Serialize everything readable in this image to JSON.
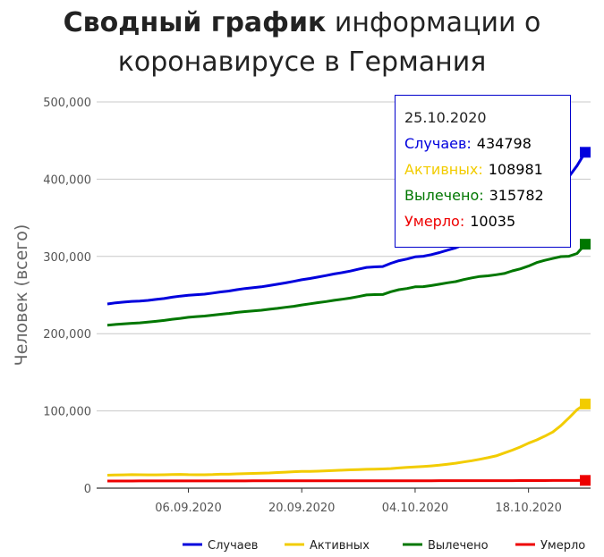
{
  "title": {
    "bold": "Сводный график",
    "rest": "информации о коронавирусе в Германия"
  },
  "tooltip": {
    "date": "25.10.2020",
    "rows": [
      {
        "label": "Случаев:",
        "value": "434798",
        "color": "#0000dd"
      },
      {
        "label": "Активных:",
        "value": "108981",
        "color": "#f2cc00"
      },
      {
        "label": "Вылечено:",
        "value": "315782",
        "color": "#007700"
      },
      {
        "label": "Умерло:",
        "value": "10035",
        "color": "#ee0000"
      }
    ]
  },
  "chart_data": {
    "type": "line",
    "ylabel": "Человек (всего)",
    "xlabel": "",
    "ylim": [
      0,
      500000
    ],
    "yticks": [
      0,
      100000,
      200000,
      300000,
      400000,
      500000
    ],
    "ytick_labels": [
      "0",
      "100,000",
      "200,000",
      "300,000",
      "400,000",
      "500,000"
    ],
    "xtick_labels": [
      "06.09.2020",
      "20.09.2020",
      "04.10.2020",
      "18.10.2020"
    ],
    "xtick_index": [
      10,
      24,
      38,
      52
    ],
    "x": [
      "27.08.2020",
      "28.08.2020",
      "29.08.2020",
      "30.08.2020",
      "31.08.2020",
      "01.09.2020",
      "02.09.2020",
      "03.09.2020",
      "04.09.2020",
      "05.09.2020",
      "06.09.2020",
      "07.09.2020",
      "08.09.2020",
      "09.09.2020",
      "10.09.2020",
      "11.09.2020",
      "12.09.2020",
      "13.09.2020",
      "14.09.2020",
      "15.09.2020",
      "16.09.2020",
      "17.09.2020",
      "18.09.2020",
      "19.09.2020",
      "20.09.2020",
      "21.09.2020",
      "22.09.2020",
      "23.09.2020",
      "24.09.2020",
      "25.09.2020",
      "26.09.2020",
      "27.09.2020",
      "28.09.2020",
      "29.09.2020",
      "30.09.2020",
      "01.10.2020",
      "02.10.2020",
      "03.10.2020",
      "04.10.2020",
      "05.10.2020",
      "06.10.2020",
      "07.10.2020",
      "08.10.2020",
      "09.10.2020",
      "10.10.2020",
      "11.10.2020",
      "12.10.2020",
      "13.10.2020",
      "14.10.2020",
      "15.10.2020",
      "16.10.2020",
      "17.10.2020",
      "18.10.2020",
      "19.10.2020",
      "20.10.2020",
      "21.10.2020",
      "22.10.2020",
      "23.10.2020",
      "24.10.2020",
      "25.10.2020"
    ],
    "grid": true,
    "legend_position": "bottom",
    "series": [
      {
        "name": "Случаев",
        "color": "#0000dd",
        "values": [
          238400,
          239900,
          240900,
          241800,
          242200,
          243100,
          244300,
          245500,
          247200,
          248600,
          249700,
          250500,
          251200,
          252600,
          254100,
          255200,
          257000,
          258500,
          259500,
          260700,
          262300,
          264000,
          265700,
          267700,
          269800,
          271400,
          273300,
          275200,
          277300,
          279100,
          281000,
          283400,
          285800,
          286500,
          286900,
          291100,
          294500,
          296600,
          299400,
          300200,
          302300,
          305000,
          308100,
          311000,
          315300,
          319000,
          322800,
          325800,
          329500,
          334800,
          341900,
          348700,
          357200,
          366300,
          374000,
          382100,
          392900,
          403300,
          417500,
          434798
        ]
      },
      {
        "name": "Активных",
        "color": "#f2cc00",
        "values": [
          16800,
          17100,
          17300,
          17500,
          17400,
          17300,
          17200,
          17400,
          17600,
          17800,
          17500,
          17400,
          17400,
          17600,
          18000,
          18100,
          18500,
          18900,
          19100,
          19400,
          19700,
          20200,
          20700,
          21300,
          21600,
          21700,
          22000,
          22400,
          22900,
          23300,
          23700,
          24100,
          24400,
          24600,
          24900,
          25400,
          26200,
          26800,
          27500,
          28100,
          28800,
          29800,
          31000,
          32300,
          33900,
          35500,
          37400,
          39500,
          41800,
          45500,
          49200,
          53300,
          58200,
          62400,
          67300,
          72700,
          80900,
          91100,
          101600,
          108981
        ]
      },
      {
        "name": "Вылечено",
        "color": "#007700",
        "values": [
          211000,
          211900,
          212700,
          213400,
          214000,
          214900,
          216000,
          217100,
          218600,
          219800,
          221200,
          222100,
          222800,
          224000,
          225100,
          226100,
          227500,
          228600,
          229400,
          230300,
          231600,
          232800,
          234100,
          235400,
          237100,
          238600,
          240200,
          241600,
          243200,
          244600,
          246100,
          248000,
          250100,
          250600,
          250700,
          254300,
          257000,
          258500,
          260600,
          260900,
          262300,
          264000,
          265800,
          267400,
          270000,
          272200,
          274100,
          274900,
          276300,
          277900,
          281200,
          283900,
          287500,
          292000,
          294900,
          297300,
          299800,
          300200,
          303800,
          315782
        ]
      },
      {
        "name": "Умерло",
        "color": "#ee0000",
        "values": [
          9300,
          9300,
          9310,
          9310,
          9320,
          9320,
          9330,
          9340,
          9350,
          9360,
          9360,
          9370,
          9380,
          9390,
          9400,
          9410,
          9420,
          9430,
          9440,
          9450,
          9460,
          9470,
          9480,
          9490,
          9500,
          9510,
          9520,
          9530,
          9540,
          9550,
          9560,
          9570,
          9580,
          9590,
          9600,
          9610,
          9620,
          9630,
          9640,
          9650,
          9660,
          9670,
          9680,
          9690,
          9700,
          9710,
          9720,
          9730,
          9740,
          9760,
          9780,
          9800,
          9820,
          9840,
          9870,
          9900,
          9930,
          9960,
          9990,
          10035
        ]
      }
    ]
  }
}
